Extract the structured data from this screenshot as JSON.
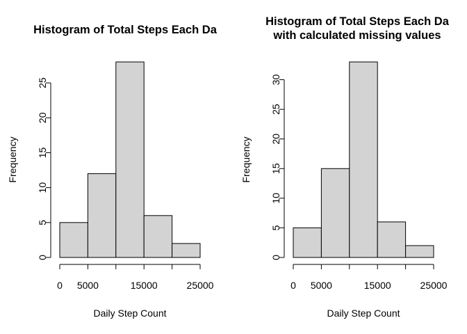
{
  "chart_data": [
    {
      "type": "bar",
      "title_lines": [
        "Histogram of Total Steps Each Da"
      ],
      "xlabel": "Daily Step Count",
      "ylabel": "Frequency",
      "bins": [
        [
          0,
          5000
        ],
        [
          5000,
          10000
        ],
        [
          10000,
          15000
        ],
        [
          15000,
          20000
        ],
        [
          20000,
          25000
        ]
      ],
      "values": [
        5,
        12,
        28,
        6,
        2
      ],
      "xticks": [
        0,
        5000,
        15000,
        25000
      ],
      "yticks": [
        0,
        5,
        10,
        15,
        20,
        25
      ],
      "xlim": [
        0,
        25000
      ],
      "ylim": [
        0,
        28
      ]
    },
    {
      "type": "bar",
      "title_lines": [
        "Histogram of Total Steps Each Da",
        "with calculated missing values"
      ],
      "xlabel": "Daily Step Count",
      "ylabel": "Frequency",
      "bins": [
        [
          0,
          5000
        ],
        [
          5000,
          10000
        ],
        [
          10000,
          15000
        ],
        [
          15000,
          20000
        ],
        [
          20000,
          25000
        ]
      ],
      "values": [
        5,
        15,
        33,
        6,
        2
      ],
      "xticks": [
        0,
        5000,
        15000,
        25000
      ],
      "yticks": [
        0,
        5,
        10,
        15,
        20,
        25,
        30
      ],
      "xlim": [
        0,
        25000
      ],
      "ylim": [
        0,
        33
      ]
    }
  ]
}
